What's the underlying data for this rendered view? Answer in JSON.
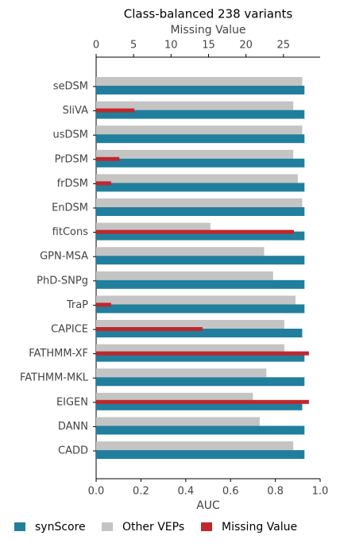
{
  "chart_data": {
    "type": "bar",
    "orientation": "horizontal",
    "title": "Class-balanced 238 variants",
    "xlabel": "AUC",
    "x2label": "Missing Value",
    "categories": [
      "seDSM",
      "SliVA",
      "usDSM",
      "PrDSM",
      "frDSM",
      "EnDSM",
      "fitCons",
      "GPN-MSA",
      "PhD-SNPg",
      "TraP",
      "CAPICE",
      "FATHMM-XF",
      "FATHMM-MKL",
      "EIGEN",
      "DANN",
      "CADD"
    ],
    "series": [
      {
        "name": "synScore",
        "color": "#217f9d",
        "values": [
          0.93,
          0.93,
          0.93,
          0.93,
          0.93,
          0.93,
          0.93,
          0.93,
          0.93,
          0.93,
          0.92,
          0.93,
          0.93,
          0.92,
          0.93,
          0.93
        ]
      },
      {
        "name": "Other VEPs",
        "color": "#c4c4c4",
        "values": [
          0.92,
          0.88,
          0.92,
          0.88,
          0.9,
          0.92,
          0.51,
          0.75,
          0.79,
          0.89,
          0.84,
          0.84,
          0.76,
          0.7,
          0.73,
          0.88
        ]
      },
      {
        "name": "Missing Value",
        "color": "#c0272d",
        "axis": "x2",
        "values": [
          null,
          5.1,
          null,
          3.1,
          2.0,
          null,
          26.4,
          null,
          null,
          2.0,
          14.2,
          28.4,
          null,
          28.4,
          null,
          null
        ]
      }
    ],
    "xlim": [
      0,
      1
    ],
    "xticks": [
      {
        "value": 0,
        "label": "0.0"
      },
      0.2,
      0.4,
      0.6,
      0.8,
      {
        "value": 1,
        "label": "1.0"
      }
    ],
    "x2lim": [
      0,
      29.9
    ],
    "x2ticks": [
      0,
      5,
      10,
      15,
      20,
      25
    ],
    "legend": "bottom"
  }
}
